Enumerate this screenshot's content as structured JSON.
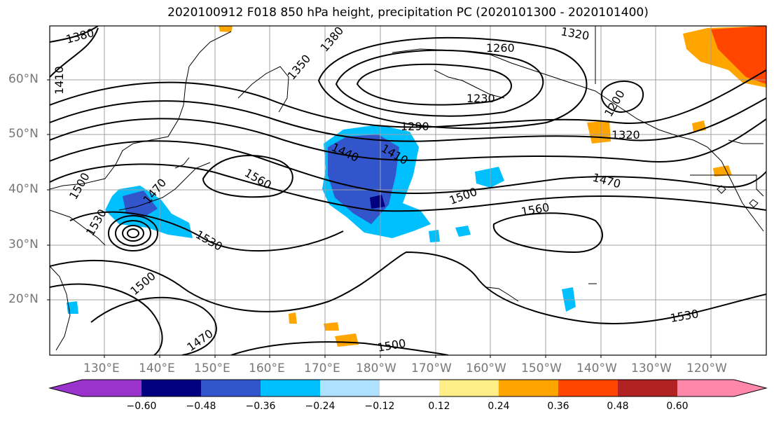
{
  "title": "2020100912 F018 850 hPa height, precipitation PC (2020101300 - 2020101400)",
  "map": {
    "lat_labels": [
      "60°N",
      "50°N",
      "40°N",
      "30°N",
      "20°N"
    ],
    "lon_labels": [
      "130°E",
      "140°E",
      "150°E",
      "160°E",
      "170°E",
      "180°W",
      "170°W",
      "160°W",
      "150°W",
      "140°W",
      "130°W",
      "120°W"
    ],
    "contour_labels": [
      "1380",
      "1410",
      "1380",
      "1350",
      "1320",
      "1260",
      "1230",
      "1290",
      "1200",
      "1320",
      "1440",
      "1410",
      "1470",
      "1500",
      "1560",
      "1560",
      "1530",
      "1500",
      "1530",
      "1470",
      "1500",
      "1530",
      "1470",
      "1500"
    ]
  },
  "colorbar": {
    "ticks": [
      "−0.60",
      "−0.48",
      "−0.36",
      "−0.24",
      "−0.12",
      "0.12",
      "0.24",
      "0.36",
      "0.48",
      "0.60"
    ],
    "colors": [
      "#9933cc",
      "#000080",
      "#3355cc",
      "#00bfff",
      "#aee0ff",
      "#ffffff",
      "#ffee88",
      "#ffa500",
      "#ff4500",
      "#b22222",
      "#ff88aa"
    ]
  }
}
